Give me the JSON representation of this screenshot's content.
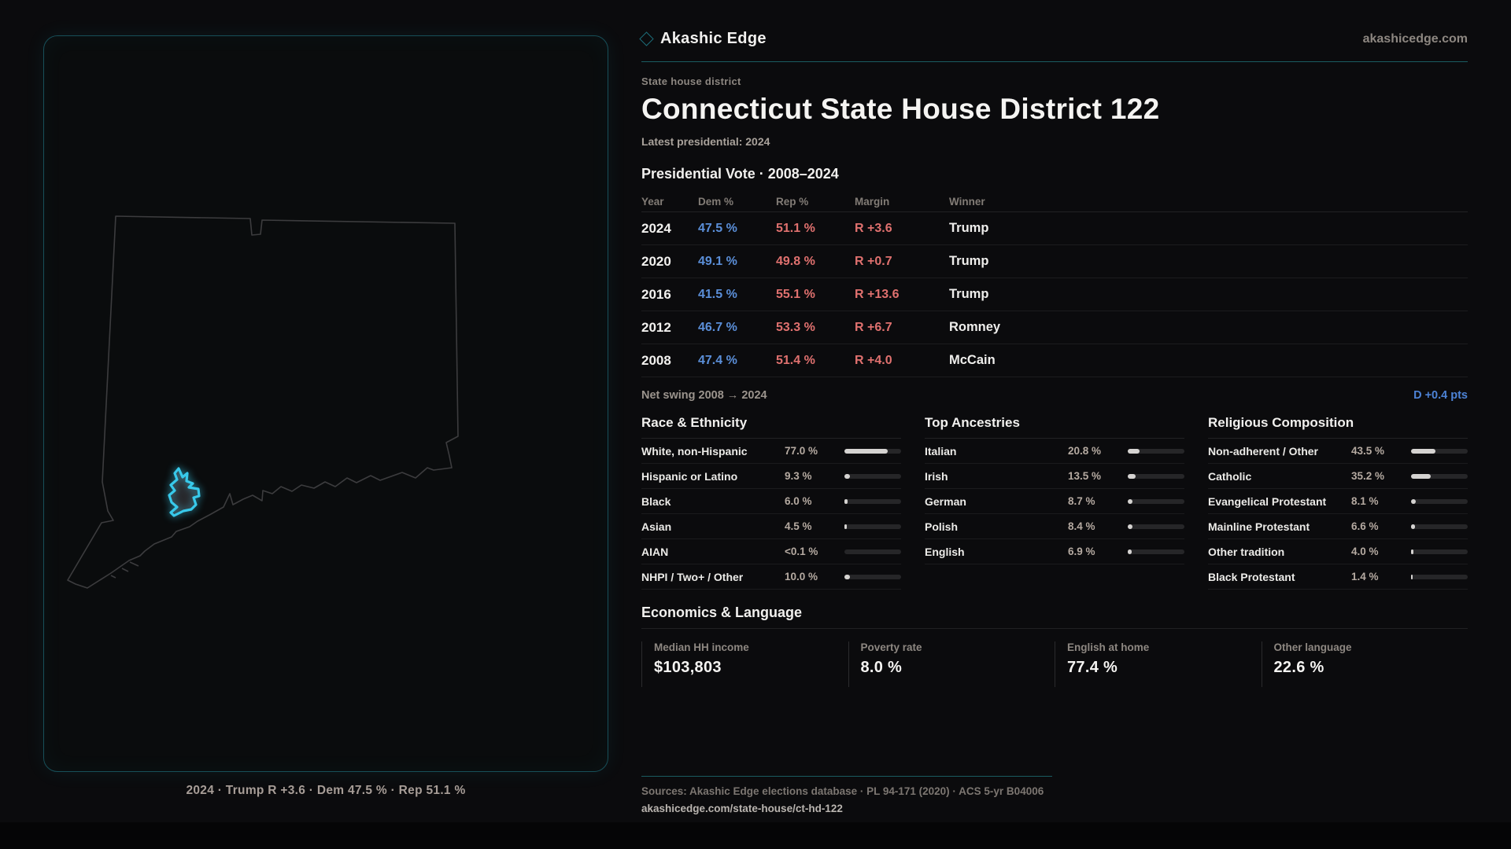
{
  "brand": {
    "name": "Akashic Edge",
    "domain": "akashicedge.com"
  },
  "page": {
    "eyebrow": "State house district",
    "title": "Connecticut State House District 122",
    "latest_line": "Latest presidential: 2024"
  },
  "vote_table": {
    "title": "Presidential Vote · 2008–2024",
    "columns": [
      "Year",
      "Dem %",
      "Rep %",
      "Margin",
      "Winner"
    ],
    "rows": [
      {
        "year": "2024",
        "dem": "47.5 %",
        "rep": "51.1 %",
        "margin": "R +3.6",
        "winner": "Trump"
      },
      {
        "year": "2020",
        "dem": "49.1 %",
        "rep": "49.8 %",
        "margin": "R +0.7",
        "winner": "Trump"
      },
      {
        "year": "2016",
        "dem": "41.5 %",
        "rep": "55.1 %",
        "margin": "R +13.6",
        "winner": "Trump"
      },
      {
        "year": "2012",
        "dem": "46.7 %",
        "rep": "53.3 %",
        "margin": "R +6.7",
        "winner": "Romney"
      },
      {
        "year": "2008",
        "dem": "47.4 %",
        "rep": "51.4 %",
        "margin": "R +4.0",
        "winner": "McCain"
      }
    ],
    "net_swing_label": "Net swing 2008 → 2024",
    "net_swing_value": "D +0.4 pts"
  },
  "demographics": [
    {
      "title": "Race & Ethnicity",
      "rows": [
        {
          "label": "White, non-Hispanic",
          "value": "77.0 %",
          "pct": 77.0
        },
        {
          "label": "Hispanic or Latino",
          "value": "9.3 %",
          "pct": 9.3
        },
        {
          "label": "Black",
          "value": "6.0 %",
          "pct": 6.0
        },
        {
          "label": "Asian",
          "value": "4.5 %",
          "pct": 4.5
        },
        {
          "label": "AIAN",
          "value": "<0.1 %",
          "pct": 0
        },
        {
          "label": "NHPI / Two+ / Other",
          "value": "10.0 %",
          "pct": 10.0
        }
      ]
    },
    {
      "title": "Top Ancestries",
      "rows": [
        {
          "label": "Italian",
          "value": "20.8 %",
          "pct": 20.8
        },
        {
          "label": "Irish",
          "value": "13.5 %",
          "pct": 13.5
        },
        {
          "label": "German",
          "value": "8.7 %",
          "pct": 8.7
        },
        {
          "label": "Polish",
          "value": "8.4 %",
          "pct": 8.4
        },
        {
          "label": "English",
          "value": "6.9 %",
          "pct": 6.9
        }
      ]
    },
    {
      "title": "Religious Composition",
      "rows": [
        {
          "label": "Non-adherent / Other",
          "value": "43.5 %",
          "pct": 43.5
        },
        {
          "label": "Catholic",
          "value": "35.2 %",
          "pct": 35.2
        },
        {
          "label": "Evangelical Protestant",
          "value": "8.1 %",
          "pct": 8.1
        },
        {
          "label": "Mainline Protestant",
          "value": "6.6 %",
          "pct": 6.6
        },
        {
          "label": "Other tradition",
          "value": "4.0 %",
          "pct": 4.0
        },
        {
          "label": "Black Protestant",
          "value": "1.4 %",
          "pct": 1.4
        }
      ]
    }
  ],
  "economics": {
    "title": "Economics & Language",
    "stats": [
      {
        "label": "Median HH income",
        "value": "$103,803"
      },
      {
        "label": "Poverty rate",
        "value": "8.0 %"
      },
      {
        "label": "English at home",
        "value": "77.4 %"
      },
      {
        "label": "Other language",
        "value": "22.6 %"
      }
    ]
  },
  "map": {
    "caption": "2024 · Trump R +3.6 · Dem 47.5 % · Rep 51.1 %"
  },
  "footer": {
    "sources": "Sources: Akashic Edge elections database · PL 94-171 (2020) · ACS 5-yr B04006",
    "permalink": "akashicedge.com/state-house/ct-hd-122"
  },
  "colors": {
    "dem": "#5b8fd9",
    "rep": "#e0716f",
    "swing": "#4d83d6",
    "accent_dim": "#1a5c61",
    "district_stroke": "#38c9ea",
    "bar": "#d5d3d1"
  }
}
